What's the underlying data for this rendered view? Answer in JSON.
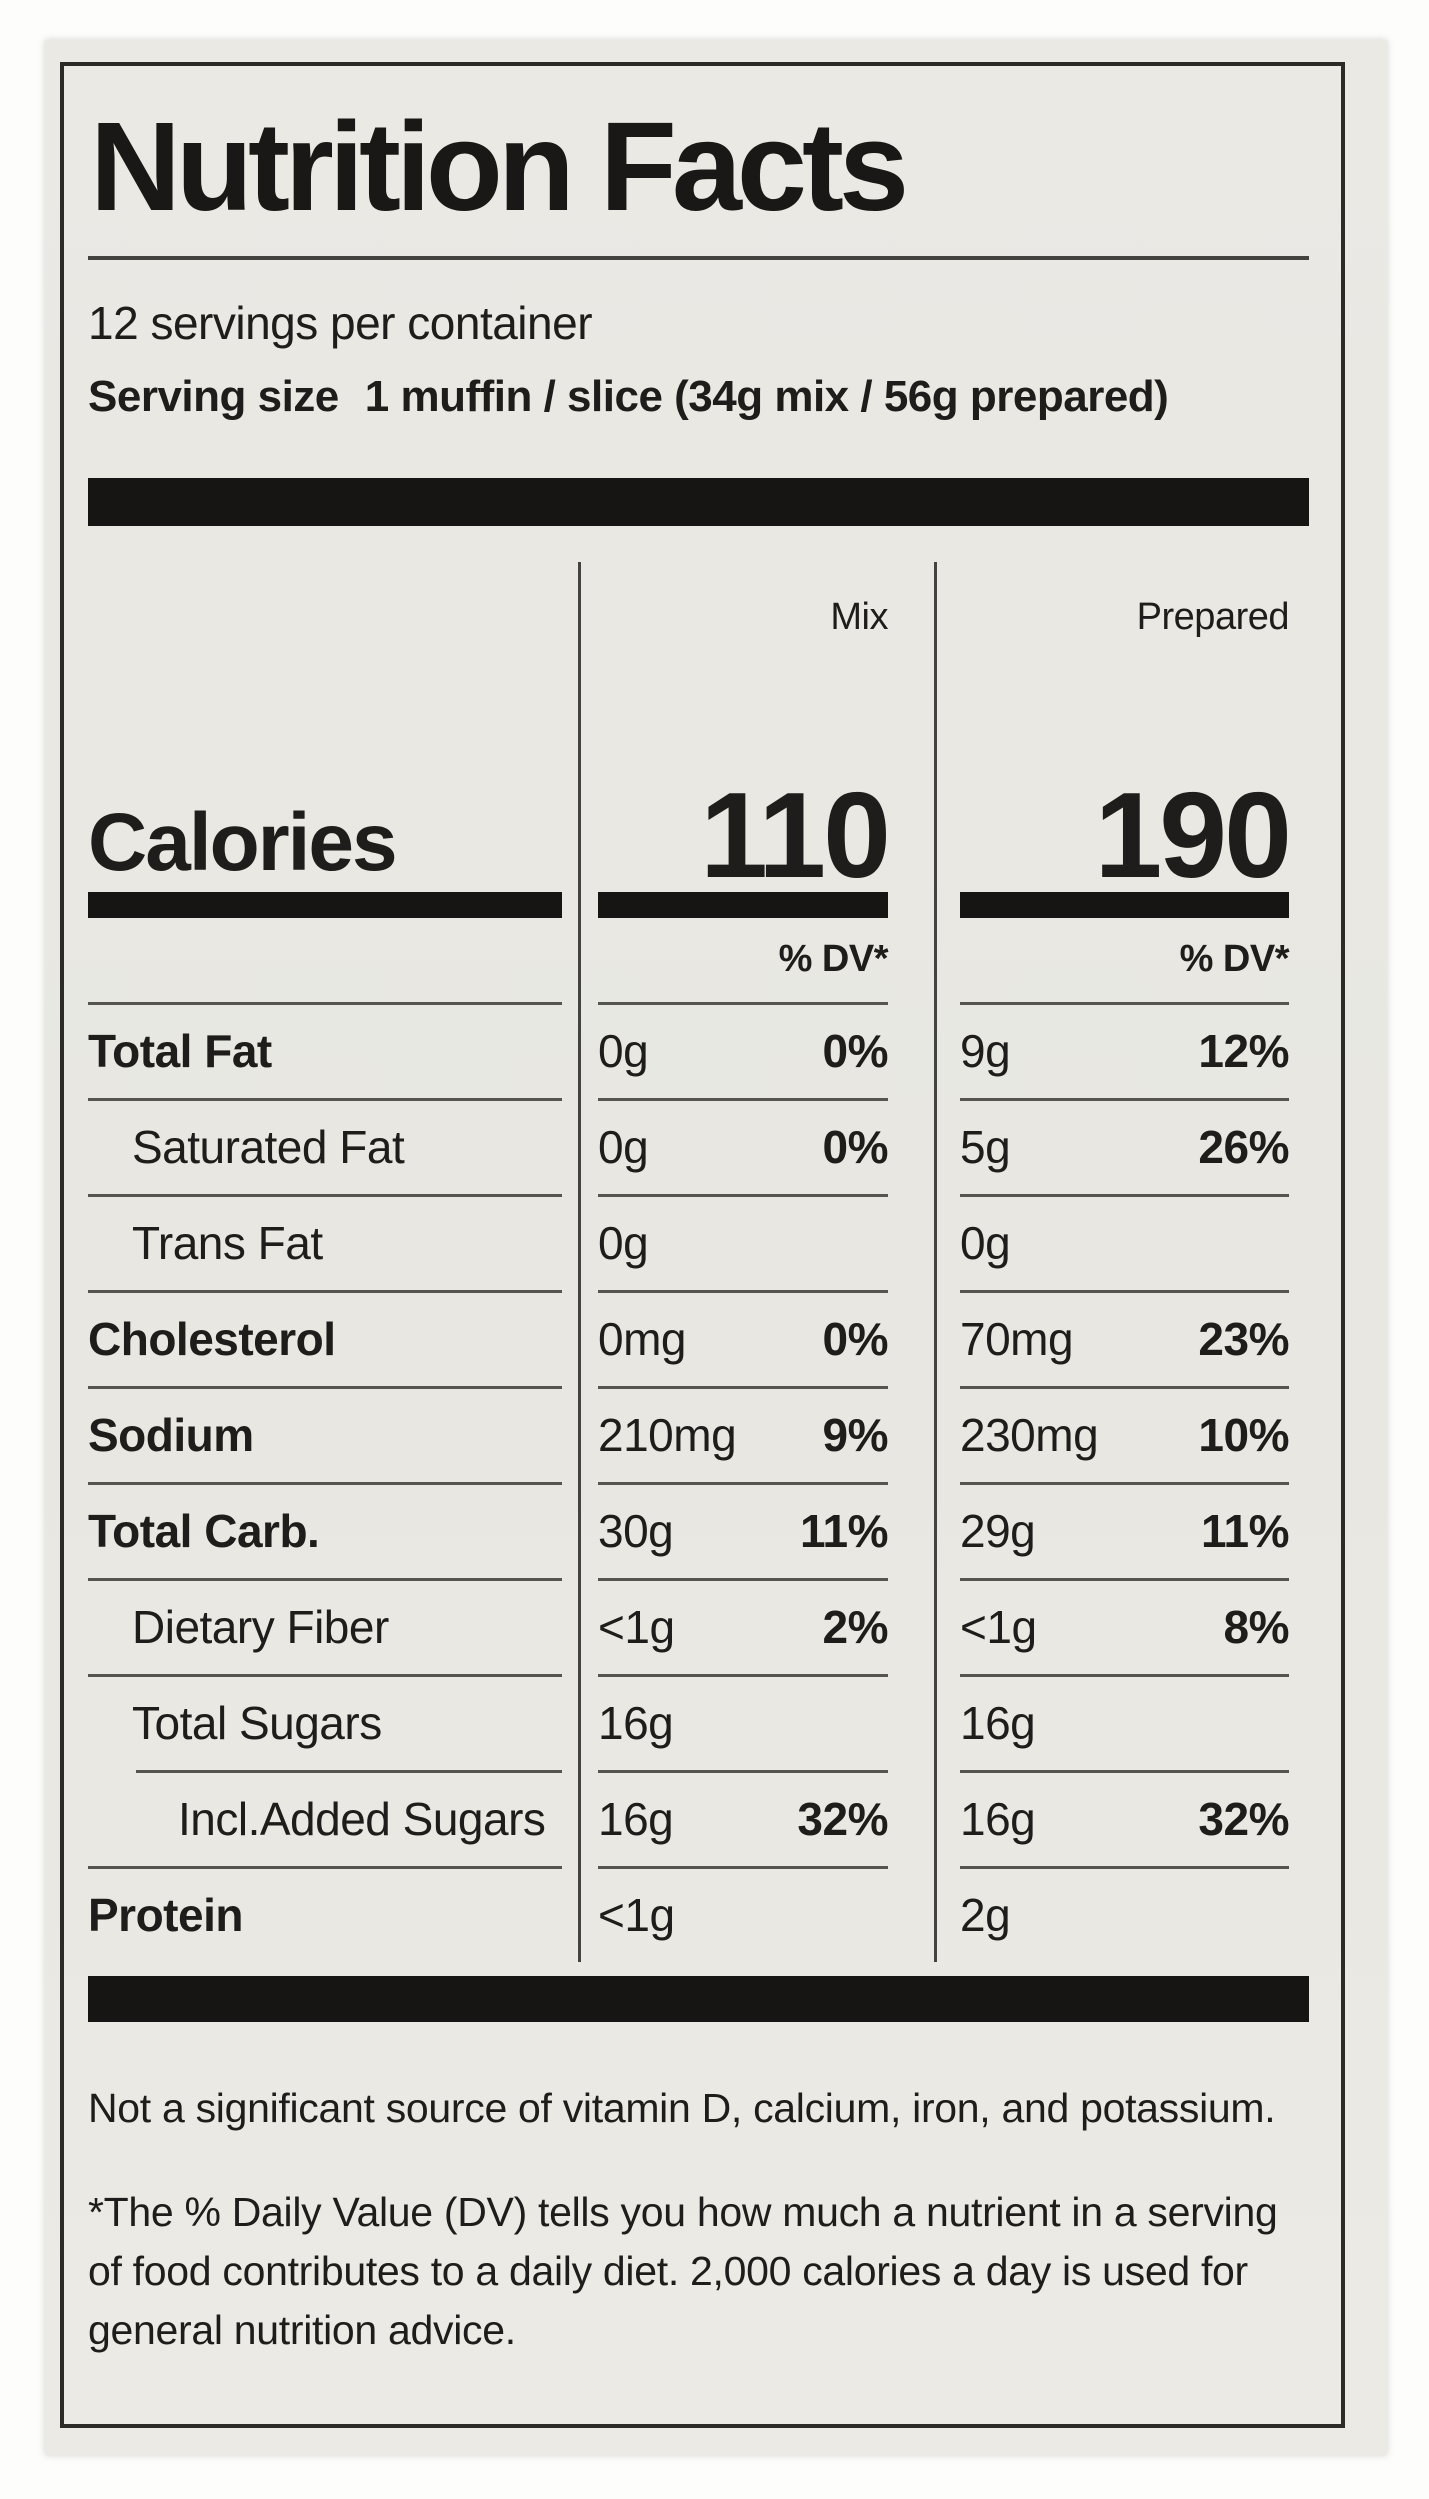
{
  "label": {
    "title": "Nutrition Facts",
    "servings_per_container": "12 servings per container",
    "serving_size_label": "Serving size",
    "serving_size_value": "1 muffin / slice (34g mix / 56g prepared)",
    "calories": {
      "label": "Calories",
      "columns": [
        {
          "name": "Mix",
          "value": "110"
        },
        {
          "name": "Prepared",
          "value": "190"
        }
      ]
    },
    "dv_header": "% DV*",
    "rows": [
      {
        "name": "Total Fat",
        "indent": 0,
        "bold": true,
        "mix_amount": "0g",
        "mix_dv": "0%",
        "prep_amount": "9g",
        "prep_dv": "12%"
      },
      {
        "name": "Saturated Fat",
        "indent": 1,
        "bold": false,
        "mix_amount": "0g",
        "mix_dv": "0%",
        "prep_amount": "5g",
        "prep_dv": "26%"
      },
      {
        "name": "Trans Fat",
        "indent": 1,
        "bold": false,
        "mix_amount": "0g",
        "mix_dv": "",
        "prep_amount": "0g",
        "prep_dv": ""
      },
      {
        "name": "Cholesterol",
        "indent": 0,
        "bold": true,
        "mix_amount": "0mg",
        "mix_dv": "0%",
        "prep_amount": "70mg",
        "prep_dv": "23%"
      },
      {
        "name": "Sodium",
        "indent": 0,
        "bold": true,
        "mix_amount": "210mg",
        "mix_dv": "9%",
        "prep_amount": "230mg",
        "prep_dv": "10%"
      },
      {
        "name": "Total Carb.",
        "indent": 0,
        "bold": true,
        "mix_amount": "30g",
        "mix_dv": "11%",
        "prep_amount": "29g",
        "prep_dv": "11%"
      },
      {
        "name": "Dietary Fiber",
        "indent": 1,
        "bold": false,
        "mix_amount": "<1g",
        "mix_dv": "2%",
        "prep_amount": "<1g",
        "prep_dv": "8%"
      },
      {
        "name": "Total Sugars",
        "indent": 1,
        "bold": false,
        "mix_amount": "16g",
        "mix_dv": "",
        "prep_amount": "16g",
        "prep_dv": ""
      },
      {
        "name": "Incl.Added Sugars",
        "indent": 2,
        "bold": false,
        "mix_amount": "16g",
        "mix_dv": "32%",
        "prep_amount": "16g",
        "prep_dv": "32%"
      },
      {
        "name": "Protein",
        "indent": 0,
        "bold": true,
        "mix_amount": "<1g",
        "mix_dv": "",
        "prep_amount": "2g",
        "prep_dv": ""
      }
    ],
    "footnotes": {
      "not_significant": "Not a significant source of vitamin D, calcium, iron, and potassium.",
      "dv_explanation": "*The % Daily Value (DV) tells you how much a nutrient in a serving of food contributes to a daily diet. 2,000 calories a day is used for general nutrition advice."
    },
    "colors": {
      "paper": "#e9e8e2",
      "ink": "#1e1d1b",
      "bar": "#161513",
      "page_background": "#fdfdfc"
    }
  }
}
